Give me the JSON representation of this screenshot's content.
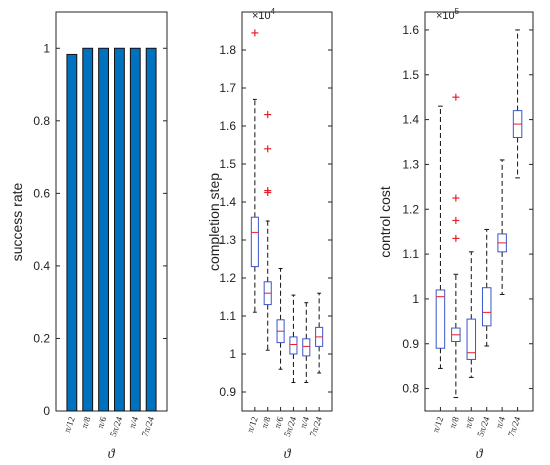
{
  "chart_data": [
    {
      "type": "bar",
      "ylabel": "success rate",
      "xlabel": "ϑ",
      "categories": [
        "π/12",
        "π/8",
        "π/6",
        "5π/24",
        "π/4",
        "7π/24"
      ],
      "values": [
        0.983,
        1.0,
        1.0,
        1.0,
        1.0,
        1.0
      ],
      "ylim": [
        0,
        1.1
      ],
      "yticks": [
        "0",
        "0.2",
        "0.4",
        "0.6",
        "0.8",
        "1"
      ],
      "bar_color": "#0072BD",
      "grid": false
    },
    {
      "type": "box",
      "ylabel": "completion step",
      "xlabel": "ϑ",
      "multiplier": "×10",
      "multiplier_exp": "4",
      "categories": [
        "π/12",
        "π/8",
        "π/6",
        "5π/24",
        "π/4",
        "7π/24"
      ],
      "ylim": [
        0.85,
        1.9
      ],
      "yticks": [
        "0.9",
        "1",
        "1.1",
        "1.2",
        "1.3",
        "1.4",
        "1.5",
        "1.6",
        "1.7",
        "1.8"
      ],
      "boxes": [
        {
          "whisker_low": 1.11,
          "q1": 1.23,
          "median": 1.32,
          "q3": 1.36,
          "whisker_high": 1.67,
          "outliers": [
            1.845
          ]
        },
        {
          "whisker_low": 1.01,
          "q1": 1.13,
          "median": 1.16,
          "q3": 1.19,
          "whisker_high": 1.35,
          "outliers": [
            1.425,
            1.43,
            1.54,
            1.63
          ]
        },
        {
          "whisker_low": 0.96,
          "q1": 1.03,
          "median": 1.06,
          "q3": 1.09,
          "whisker_high": 1.225,
          "outliers": []
        },
        {
          "whisker_low": 0.925,
          "q1": 1.0,
          "median": 1.025,
          "q3": 1.045,
          "whisker_high": 1.155,
          "outliers": []
        },
        {
          "whisker_low": 0.925,
          "q1": 0.995,
          "median": 1.02,
          "q3": 1.04,
          "whisker_high": 1.135,
          "outliers": []
        },
        {
          "whisker_low": 0.95,
          "q1": 1.02,
          "median": 1.045,
          "q3": 1.07,
          "whisker_high": 1.16,
          "outliers": []
        }
      ],
      "box_color": "#3b55c8",
      "median_color": "#e8202a",
      "outlier_color": "#e8202a",
      "grid": false
    },
    {
      "type": "box",
      "ylabel": "control cost",
      "xlabel": "ϑ",
      "multiplier": "×10",
      "multiplier_exp": "5",
      "categories": [
        "π/12",
        "π/8",
        "π/6",
        "5π/24",
        "π/4",
        "7π/24"
      ],
      "ylim": [
        0.75,
        1.64
      ],
      "yticks": [
        "0.8",
        "0.9",
        "1",
        "1.1",
        "1.2",
        "1.3",
        "1.4",
        "1.5",
        "1.6"
      ],
      "boxes": [
        {
          "whisker_low": 0.845,
          "q1": 0.89,
          "median": 1.005,
          "q3": 1.02,
          "whisker_high": 1.43,
          "outliers": []
        },
        {
          "whisker_low": 0.78,
          "q1": 0.905,
          "median": 0.92,
          "q3": 0.935,
          "whisker_high": 1.055,
          "outliers": [
            1.135,
            1.175,
            1.225,
            1.45
          ]
        },
        {
          "whisker_low": 0.825,
          "q1": 0.865,
          "median": 0.88,
          "q3": 0.955,
          "whisker_high": 1.105,
          "outliers": []
        },
        {
          "whisker_low": 0.895,
          "q1": 0.94,
          "median": 0.97,
          "q3": 1.025,
          "whisker_high": 1.155,
          "outliers": []
        },
        {
          "whisker_low": 1.01,
          "q1": 1.105,
          "median": 1.125,
          "q3": 1.145,
          "whisker_high": 1.31,
          "outliers": []
        },
        {
          "whisker_low": 1.27,
          "q1": 1.36,
          "median": 1.39,
          "q3": 1.42,
          "whisker_high": 1.6,
          "outliers": []
        }
      ],
      "box_color": "#3b55c8",
      "median_color": "#e8202a",
      "outlier_color": "#e8202a",
      "grid": false
    }
  ]
}
